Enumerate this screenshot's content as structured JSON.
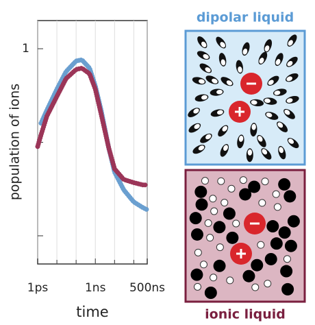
{
  "chart_data": {
    "type": "line",
    "xlabel": "time",
    "ylabel": "population of ions",
    "xlog": true,
    "ylog": true,
    "grid": true,
    "xlim": [
      0.001,
      500
    ],
    "ylim": [
      0.005,
      2
    ],
    "xticks": [
      {
        "value": 0.001,
        "label": "1ps"
      },
      {
        "value": 1,
        "label": "1ns"
      },
      {
        "value": 500,
        "label": "500ns"
      }
    ],
    "xgrid": [
      0.01,
      0.1,
      10,
      100
    ],
    "yticks": [
      1
    ],
    "yminor": [
      0.1,
      0.01
    ],
    "series": [
      {
        "name": "dipolar liquid",
        "color": "#6a9fd0",
        "x": [
          0.0015,
          0.003,
          0.01,
          0.03,
          0.1,
          0.2,
          0.5,
          1,
          2,
          5,
          10,
          30,
          100,
          300,
          500
        ],
        "values": [
          0.16,
          0.22,
          0.37,
          0.57,
          0.74,
          0.76,
          0.62,
          0.4,
          0.22,
          0.087,
          0.048,
          0.031,
          0.023,
          0.02,
          0.019
        ]
      },
      {
        "name": "ionic liquid",
        "color": "#9b3558",
        "x": [
          0.001,
          0.0015,
          0.003,
          0.01,
          0.03,
          0.1,
          0.2,
          0.5,
          1,
          2,
          5,
          10,
          30,
          100,
          300,
          500
        ],
        "values": [
          0.09,
          0.12,
          0.19,
          0.31,
          0.48,
          0.6,
          0.62,
          0.54,
          0.37,
          0.2,
          0.087,
          0.052,
          0.04,
          0.037,
          0.035,
          0.035
        ]
      }
    ]
  }
}
